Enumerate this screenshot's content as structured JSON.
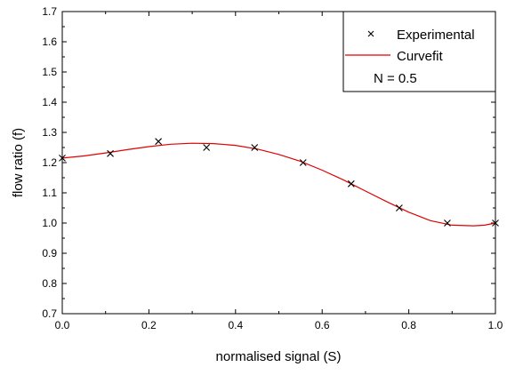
{
  "chart_data": {
    "type": "scatter",
    "title": "",
    "xlabel": "normalised signal (S)",
    "ylabel": "flow ratio (f)",
    "xlim": [
      0.0,
      1.0
    ],
    "ylim": [
      0.7,
      1.7
    ],
    "x_ticks": [
      "0.0",
      "0.2",
      "0.4",
      "0.6",
      "0.8",
      "1.0"
    ],
    "y_ticks": [
      "0.7",
      "0.8",
      "0.9",
      "1.0",
      "1.1",
      "1.2",
      "1.3",
      "1.4",
      "1.5",
      "1.6",
      "1.7"
    ],
    "grid": false,
    "legend_position": "top-right",
    "legend_note": "N = 0.5",
    "series": [
      {
        "name": "Experimental",
        "kind": "markers",
        "marker": "x",
        "color": "#000000",
        "points": [
          {
            "x": 0.0,
            "y": 1.215
          },
          {
            "x": 0.111,
            "y": 1.23
          },
          {
            "x": 0.222,
            "y": 1.27
          },
          {
            "x": 0.333,
            "y": 1.25
          },
          {
            "x": 0.444,
            "y": 1.25
          },
          {
            "x": 0.556,
            "y": 1.2
          },
          {
            "x": 0.667,
            "y": 1.13
          },
          {
            "x": 0.778,
            "y": 1.05
          },
          {
            "x": 0.889,
            "y": 1.0
          },
          {
            "x": 1.0,
            "y": 1.0
          }
        ]
      },
      {
        "name": "Curvefit",
        "kind": "line",
        "color": "#e00000",
        "points": [
          {
            "x": 0.0,
            "y": 1.215
          },
          {
            "x": 0.05,
            "y": 1.222
          },
          {
            "x": 0.1,
            "y": 1.232
          },
          {
            "x": 0.15,
            "y": 1.243
          },
          {
            "x": 0.2,
            "y": 1.253
          },
          {
            "x": 0.25,
            "y": 1.261
          },
          {
            "x": 0.3,
            "y": 1.264
          },
          {
            "x": 0.35,
            "y": 1.263
          },
          {
            "x": 0.4,
            "y": 1.257
          },
          {
            "x": 0.45,
            "y": 1.245
          },
          {
            "x": 0.5,
            "y": 1.227
          },
          {
            "x": 0.55,
            "y": 1.204
          },
          {
            "x": 0.6,
            "y": 1.175
          },
          {
            "x": 0.65,
            "y": 1.142
          },
          {
            "x": 0.7,
            "y": 1.106
          },
          {
            "x": 0.75,
            "y": 1.07
          },
          {
            "x": 0.8,
            "y": 1.036
          },
          {
            "x": 0.85,
            "y": 1.008
          },
          {
            "x": 0.9,
            "y": 0.993
          },
          {
            "x": 0.95,
            "y": 0.991
          },
          {
            "x": 0.975,
            "y": 0.993
          },
          {
            "x": 1.0,
            "y": 1.0
          }
        ]
      }
    ]
  }
}
